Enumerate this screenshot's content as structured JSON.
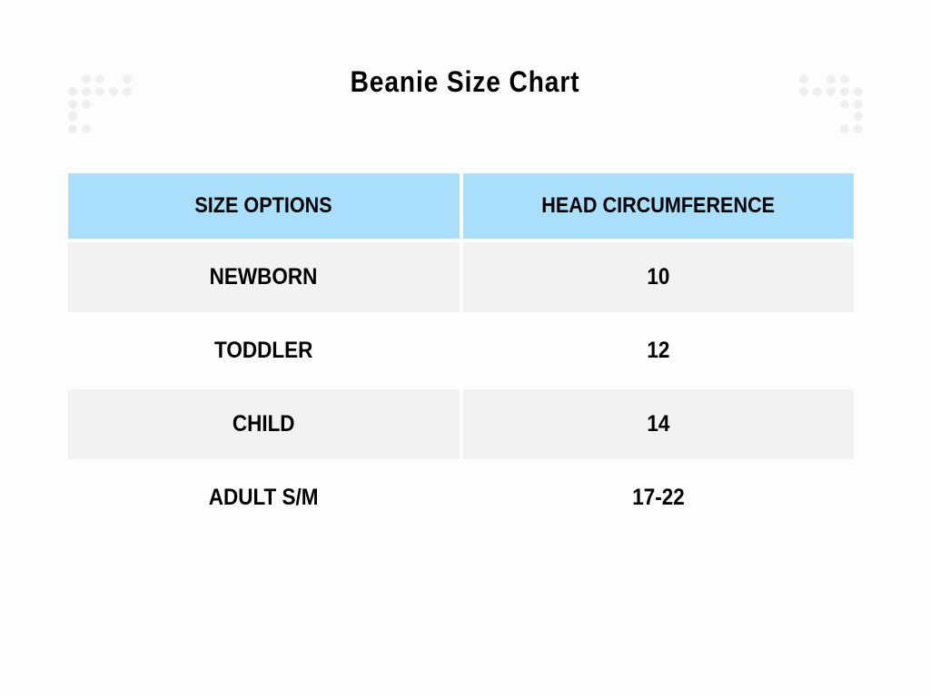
{
  "title": "Beanie Size Chart",
  "colors": {
    "header_bg": "#aadffc",
    "stripe_bg": "#f2f2f2",
    "decor_dots": "#efefef"
  },
  "table": {
    "headers": [
      "Size Options",
      "Head Circumference"
    ],
    "rows": [
      [
        "Newborn",
        "10"
      ],
      [
        "Toddler",
        "12"
      ],
      [
        "Child",
        "14"
      ],
      [
        "Adult S/M",
        "17-22"
      ]
    ]
  }
}
